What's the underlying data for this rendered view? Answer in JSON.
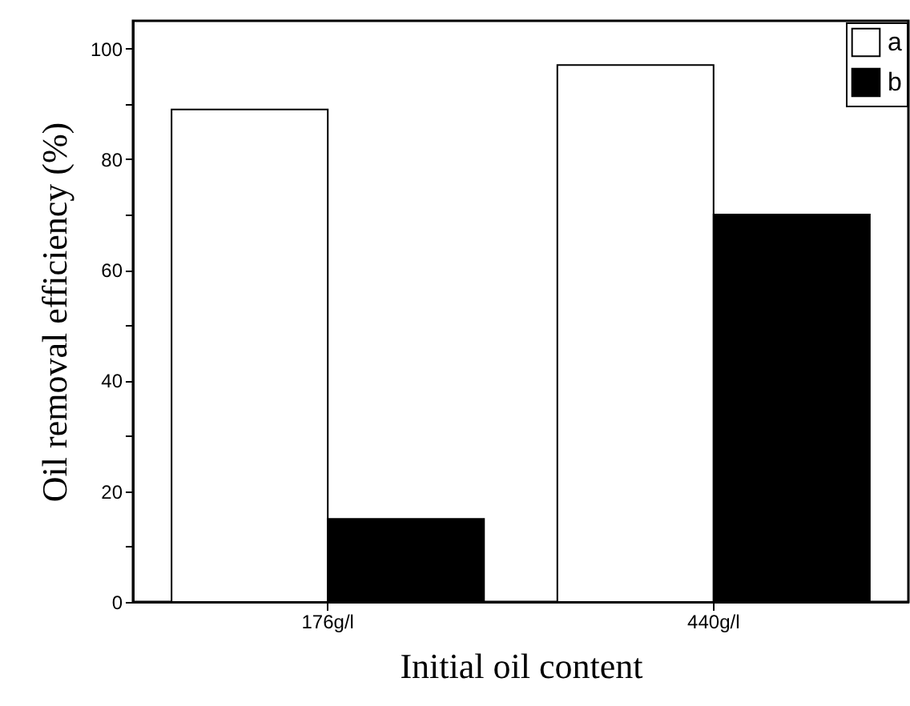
{
  "chart_data": {
    "type": "bar",
    "xlabel": "Initial oil content",
    "ylabel": "Oil removal efficiency (%)",
    "categories": [
      "176g/l",
      "440g/l"
    ],
    "series": [
      {
        "name": "a",
        "color": "#ffffff",
        "values": [
          89,
          97
        ]
      },
      {
        "name": "b",
        "color": "#000000",
        "values": [
          15,
          70
        ]
      }
    ],
    "ylim": [
      0,
      105
    ],
    "yticks": [
      0,
      {
        "value": 10,
        "label": null
      },
      20,
      {
        "value": 30,
        "label": null
      },
      40,
      {
        "value": 50,
        "label": null
      },
      60,
      {
        "value": 70,
        "label": null
      },
      80,
      {
        "value": 90,
        "label": null
      },
      100
    ],
    "legend": "top right",
    "grid": false
  }
}
